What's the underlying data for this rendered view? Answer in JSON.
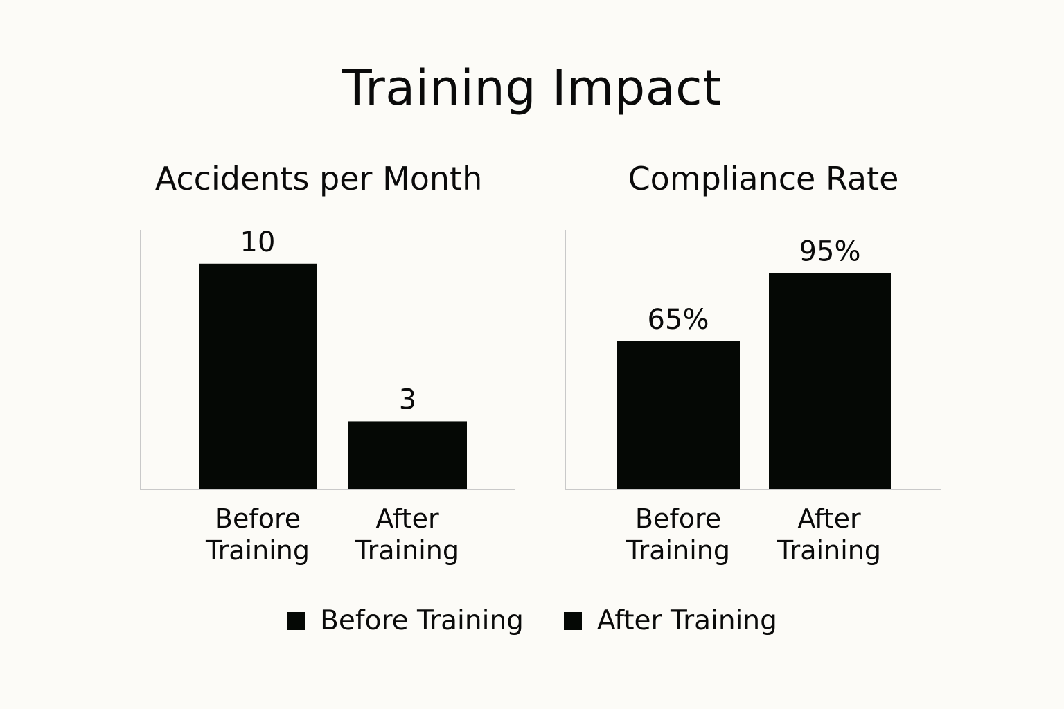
{
  "title": "Training Impact",
  "legend": [
    {
      "label": "Before Training",
      "color": "#050805"
    },
    {
      "label": "After Training",
      "color": "#050805"
    }
  ],
  "colors": {
    "bar": "#050805",
    "axis": "#c9c9c9",
    "text": "#0a0a0a",
    "background": "#fcfbf7"
  },
  "chart_data": [
    {
      "type": "bar",
      "title": "Accidents per Month",
      "categories": [
        [
          "Before",
          "Training"
        ],
        [
          "After",
          "Training"
        ]
      ],
      "values": [
        10,
        3
      ],
      "value_labels": [
        "10",
        "3"
      ],
      "ylim": [
        0,
        11.5
      ],
      "xlabel": "",
      "ylabel": "",
      "grid": false
    },
    {
      "type": "bar",
      "title": "Compliance Rate",
      "categories": [
        [
          "Before",
          "Training"
        ],
        [
          "After",
          "Training"
        ]
      ],
      "values": [
        65,
        95
      ],
      "value_labels": [
        "65%",
        "95%"
      ],
      "ylim": [
        0,
        114
      ],
      "xlabel": "",
      "ylabel": "",
      "grid": false
    }
  ]
}
